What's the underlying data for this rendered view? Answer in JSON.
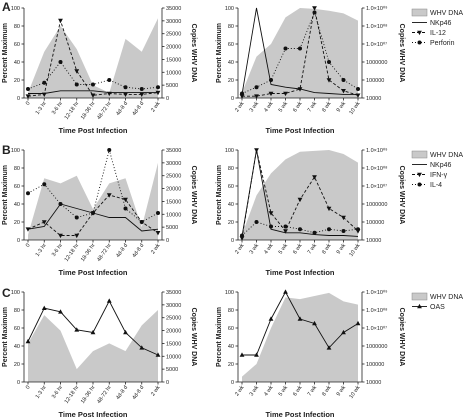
{
  "figure": {
    "rows": [
      {
        "letter": "A",
        "legend": [
          "WHV DNA",
          "NKp46",
          "IL-12",
          "Perforin"
        ],
        "styles": [
          "area",
          "solid",
          "dash-tri",
          "dot-circle"
        ]
      },
      {
        "letter": "B",
        "legend": [
          "WHV DNA",
          "NKp46",
          "IFN-γ",
          "IL-4"
        ],
        "styles": [
          "area",
          "solid",
          "dash-tri",
          "dot-circle"
        ]
      },
      {
        "letter": "C",
        "legend": [
          "WHV DNA",
          "OAS"
        ],
        "styles": [
          "area",
          "solid-tri"
        ]
      }
    ],
    "left_panels": {
      "ylabel_left": "Percent Maximum",
      "ylabel_right": "Copies WHV DNA",
      "xlabel": "Time Post Infection",
      "left_ticks": [
        "0",
        "20",
        "40",
        "60",
        "80",
        "100"
      ],
      "right_ticks": [
        "0",
        "5000",
        "10000",
        "15000",
        "20000",
        "25000",
        "30000",
        "35000"
      ],
      "x_ticks": [
        "0",
        "1-3 hr",
        "3-6 hr",
        "12-18 hr",
        "18-36 hr",
        "48-72 hr",
        "4d-8 d",
        "4d-8 d",
        "2 wk"
      ]
    },
    "right_panels": {
      "ylabel_left": "Percent Maximum",
      "ylabel_right": "Copies WHV DNA",
      "xlabel": "Time Post Infection",
      "left_ticks": [
        "0",
        "20",
        "40",
        "60",
        "80",
        "100"
      ],
      "right_ticks": [
        "10000",
        "100000",
        "1000000",
        "1.0×10⁰⁷",
        "1.0×10⁰⁸",
        "1.0×10⁰⁹"
      ],
      "x_ticks": [
        "2 wk",
        "3 wk",
        "4 wk",
        "5 wk",
        "6 wk",
        "7 wk",
        "8 wk",
        "9 wk",
        "10 wk"
      ]
    }
  },
  "chart_data": [
    {
      "panel": "A-left",
      "type": "line",
      "x": [
        "0",
        "1-3 hr",
        "3-6 hr",
        "12-18 hr",
        "18-36 hr",
        "48-72 hr",
        "4d-8 d",
        "4d-8 d",
        "2 wk"
      ],
      "ylim": [
        0,
        100
      ],
      "y2lim": [
        0,
        35000
      ],
      "area": {
        "name": "WHV DNA",
        "values": [
          2000,
          18000,
          28000,
          19000,
          5000,
          2000,
          23000,
          18000,
          31000
        ]
      },
      "series": [
        {
          "name": "NKp46",
          "values": [
            5,
            5,
            8,
            8,
            8,
            6,
            6,
            6,
            6
          ]
        },
        {
          "name": "IL-12",
          "values": [
            2,
            4,
            86,
            30,
            3,
            5,
            4,
            4,
            6
          ]
        },
        {
          "name": "Perforin",
          "values": [
            10,
            17,
            40,
            15,
            15,
            20,
            12,
            10,
            12
          ]
        }
      ]
    },
    {
      "panel": "A-right",
      "type": "line",
      "x": [
        "2 wk",
        "3 wk",
        "4 wk",
        "5 wk",
        "6 wk",
        "7 wk",
        "8 wk",
        "9 wk",
        "10 wk"
      ],
      "ylim": [
        0,
        100
      ],
      "y2log": [
        10000,
        1000000000
      ],
      "area": {
        "name": "WHV DNA",
        "values": [
          20000,
          2000000,
          10000000,
          300000000,
          1000000000,
          900000000,
          700000000,
          500000000,
          200000000
        ]
      },
      "series": [
        {
          "name": "NKp46",
          "values": [
            4,
            100,
            15,
            12,
            10,
            6,
            5,
            4,
            4
          ]
        },
        {
          "name": "IL-12",
          "values": [
            2,
            2,
            5,
            5,
            10,
            100,
            20,
            8,
            3
          ]
        },
        {
          "name": "Perforin",
          "values": [
            5,
            12,
            20,
            55,
            55,
            95,
            40,
            20,
            10
          ]
        }
      ]
    },
    {
      "panel": "B-left",
      "type": "line",
      "x": [
        "0",
        "1-3 hr",
        "3-6 hr",
        "12-18 hr",
        "18-36 hr",
        "48-72 hr",
        "4d-8 d",
        "4d-8 d",
        "2 wk"
      ],
      "ylim": [
        0,
        100
      ],
      "y2lim": [
        0,
        35000
      ],
      "area": {
        "name": "WHV DNA",
        "values": [
          2000,
          24000,
          22000,
          25000,
          12000,
          22000,
          24000,
          5000,
          30000
        ]
      },
      "series": [
        {
          "name": "NKp46",
          "values": [
            12,
            15,
            40,
            35,
            30,
            25,
            25,
            10,
            12
          ]
        },
        {
          "name": "IFN-γ",
          "values": [
            12,
            20,
            5,
            5,
            30,
            50,
            45,
            20,
            8
          ]
        },
        {
          "name": "IL-4",
          "values": [
            52,
            62,
            40,
            25,
            30,
            100,
            35,
            20,
            30
          ]
        }
      ]
    },
    {
      "panel": "B-right",
      "type": "line",
      "x": [
        "2 wk",
        "3 wk",
        "4 wk",
        "5 wk",
        "6 wk",
        "7 wk",
        "8 wk",
        "9 wk",
        "10 wk"
      ],
      "ylim": [
        0,
        100
      ],
      "y2log": [
        10000,
        1000000000
      ],
      "area": {
        "name": "WHV DNA",
        "values": [
          20000,
          3000000,
          50000000,
          300000000,
          800000000,
          900000000,
          1000000000,
          600000000,
          200000000
        ]
      },
      "series": [
        {
          "name": "NKp46",
          "values": [
            4,
            100,
            12,
            8,
            8,
            6,
            5,
            5,
            4
          ]
        },
        {
          "name": "IFN-γ",
          "values": [
            2,
            100,
            30,
            10,
            45,
            70,
            35,
            25,
            10
          ]
        },
        {
          "name": "IL-4",
          "values": [
            5,
            20,
            15,
            15,
            12,
            8,
            12,
            10,
            12
          ]
        }
      ]
    },
    {
      "panel": "C-left",
      "type": "line",
      "x": [
        "0",
        "1-3 hr",
        "3-6 hr",
        "12-18 hr",
        "18-36 hr",
        "48-72 hr",
        "4d-8 d",
        "4d-8 d",
        "2 wk"
      ],
      "ylim": [
        0,
        100
      ],
      "y2lim": [
        0,
        35000
      ],
      "area": {
        "name": "WHV DNA",
        "values": [
          15000,
          26000,
          20000,
          5000,
          12000,
          15000,
          12000,
          22000,
          28000
        ]
      },
      "series": [
        {
          "name": "OAS",
          "values": [
            45,
            82,
            78,
            58,
            55,
            90,
            55,
            38,
            30
          ]
        }
      ]
    },
    {
      "panel": "C-right",
      "type": "line",
      "x": [
        "2 wk",
        "3 wk",
        "4 wk",
        "5 wk",
        "6 wk",
        "7 wk",
        "8 wk",
        "9 wk",
        "10 wk"
      ],
      "ylim": [
        0,
        100
      ],
      "y2log": [
        10000,
        1000000000
      ],
      "area": {
        "name": "WHV DNA",
        "values": [
          20000,
          100000,
          10000000,
          500000000,
          400000000,
          600000000,
          900000000,
          300000000,
          200000000
        ]
      },
      "series": [
        {
          "name": "OAS",
          "values": [
            30,
            30,
            70,
            100,
            70,
            65,
            38,
            55,
            65
          ]
        }
      ]
    }
  ]
}
